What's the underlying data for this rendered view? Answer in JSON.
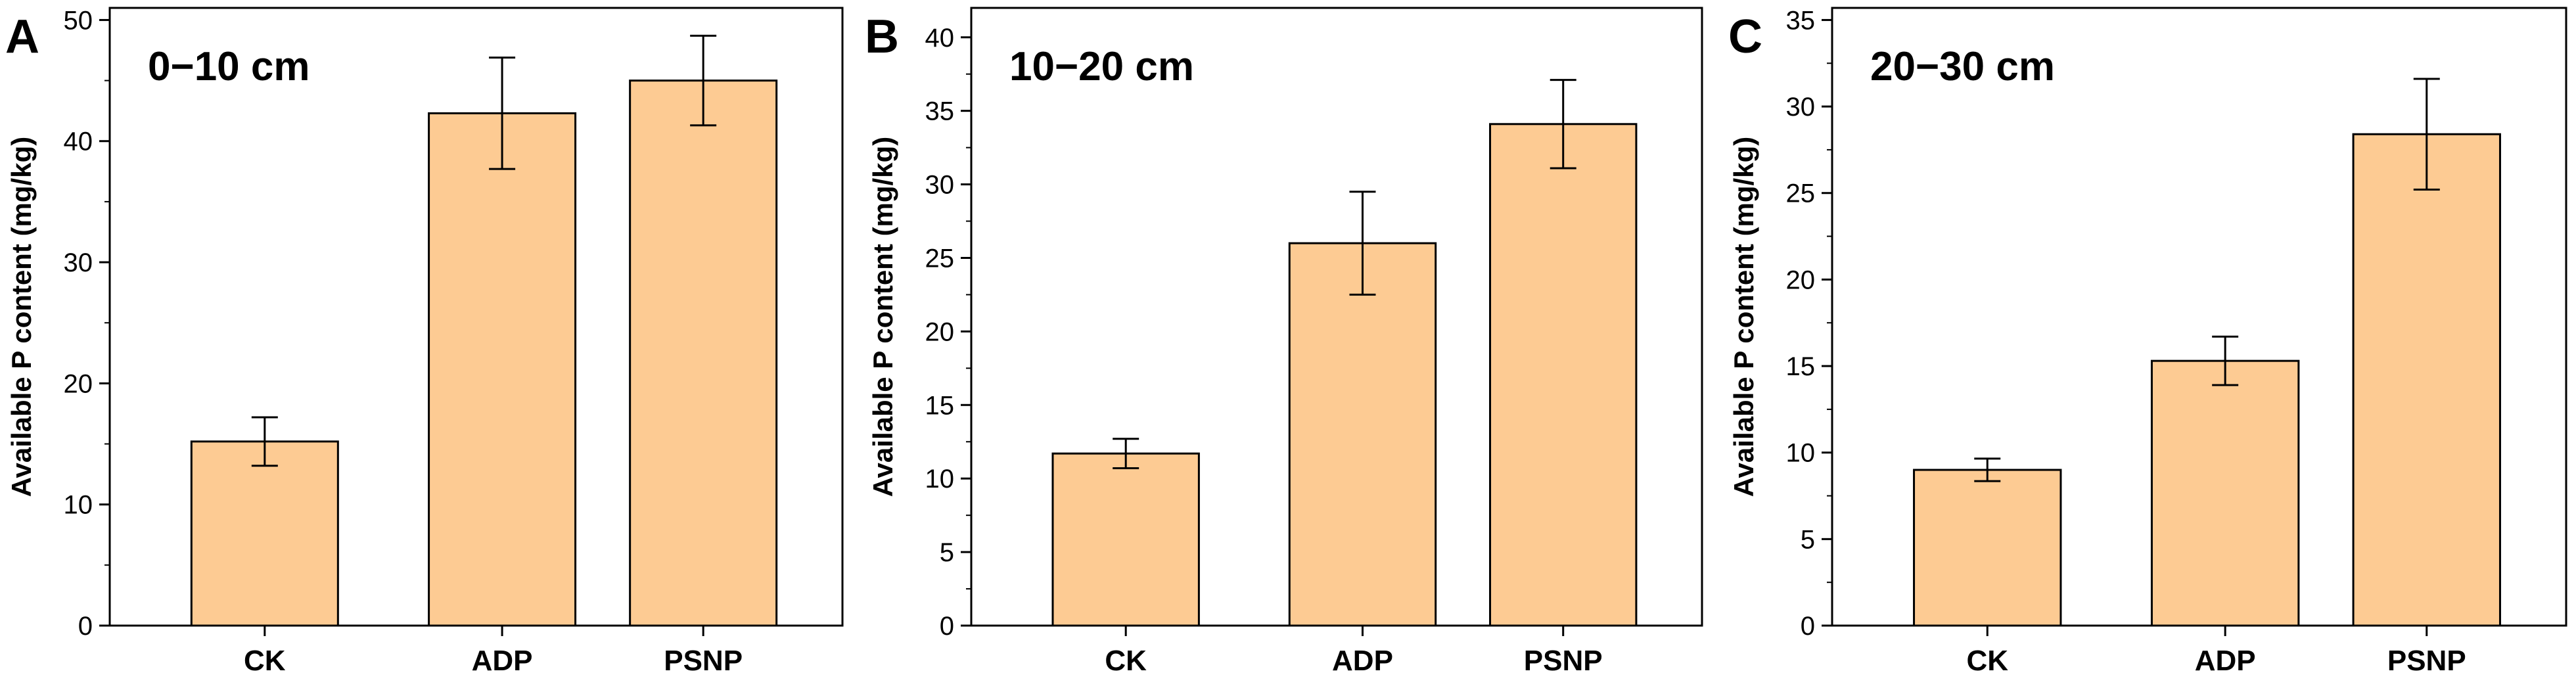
{
  "colors": {
    "bar_fill": "#fdcb93",
    "bar_stroke": "#000000",
    "axis": "#000000"
  },
  "chart_data": [
    {
      "type": "bar",
      "panel_label": "A",
      "title": "0−10 cm",
      "ylabel": "Available P content (mg/kg)",
      "categories": [
        "CK",
        "ADP",
        "PSNP"
      ],
      "values": [
        15.2,
        42.3,
        45.0
      ],
      "errors": [
        2.0,
        4.6,
        3.7
      ],
      "ylim": [
        0,
        51
      ],
      "yticks": [
        0,
        10,
        20,
        30,
        40,
        50
      ],
      "minor_step": 5,
      "grid": false
    },
    {
      "type": "bar",
      "panel_label": "B",
      "title": "10−20 cm",
      "ylabel": "Available P content (mg/kg)",
      "categories": [
        "CK",
        "ADP",
        "PSNP"
      ],
      "values": [
        11.7,
        26.0,
        34.1
      ],
      "errors": [
        1.0,
        3.5,
        3.0
      ],
      "ylim": [
        0,
        42
      ],
      "yticks": [
        0,
        5,
        10,
        15,
        20,
        25,
        30,
        35,
        40
      ],
      "minor_step": 2.5,
      "grid": false
    },
    {
      "type": "bar",
      "panel_label": "C",
      "title": "20−30 cm",
      "ylabel": "Available P content (mg/kg)",
      "categories": [
        "CK",
        "ADP",
        "PSNP"
      ],
      "values": [
        9.0,
        15.3,
        28.4
      ],
      "errors": [
        0.65,
        1.4,
        3.2
      ],
      "ylim": [
        0,
        35.7
      ],
      "yticks": [
        0,
        5,
        10,
        15,
        20,
        25,
        30,
        35
      ],
      "minor_step": 2.5,
      "grid": false
    }
  ]
}
